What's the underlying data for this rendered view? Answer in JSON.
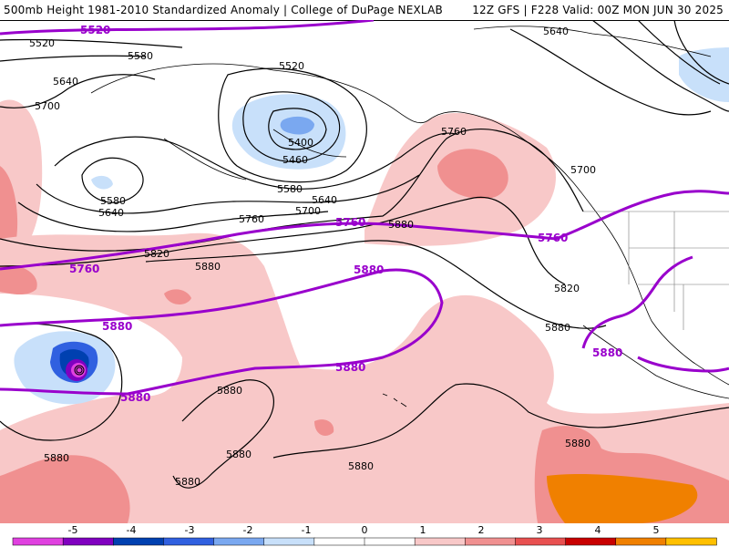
{
  "header": {
    "title_left": "500mb Height 1981-2010 Standardized Anomaly | College of DuPage NEXLAB",
    "title_right": "12Z GFS | F228 Valid: 00Z MON JUN 30 2025"
  },
  "contour_labels": {
    "black": [
      "5520",
      "5580",
      "5640",
      "5700",
      "5520",
      "5400",
      "5460",
      "5580",
      "5640",
      "5700",
      "5580",
      "5640",
      "5760",
      "5820",
      "5880",
      "5640",
      "5760",
      "5700",
      "5880",
      "5820",
      "5880",
      "5880",
      "5880",
      "5880",
      "5880",
      "5880",
      "5880"
    ],
    "purple": [
      "5520",
      "5760",
      "5760",
      "5760",
      "5880",
      "5880",
      "5880",
      "5880",
      "5880"
    ]
  },
  "colorbar": {
    "ticks": [
      "-5",
      "-4",
      "-3",
      "-2",
      "-1",
      "0",
      "1",
      "2",
      "3",
      "4",
      "5"
    ],
    "colors": [
      "#e040e0",
      "#8000c0",
      "#0040b0",
      "#3060e0",
      "#7aa8f0",
      "#c8e0fa",
      "#ffffff",
      "#ffffff",
      "#f8c8c8",
      "#f09090",
      "#e85050",
      "#c80000",
      "#f08000",
      "#ffc000"
    ]
  },
  "colors": {
    "accent_purple": "#9900cc",
    "contour_black": "#000000",
    "coast": "#000000"
  }
}
